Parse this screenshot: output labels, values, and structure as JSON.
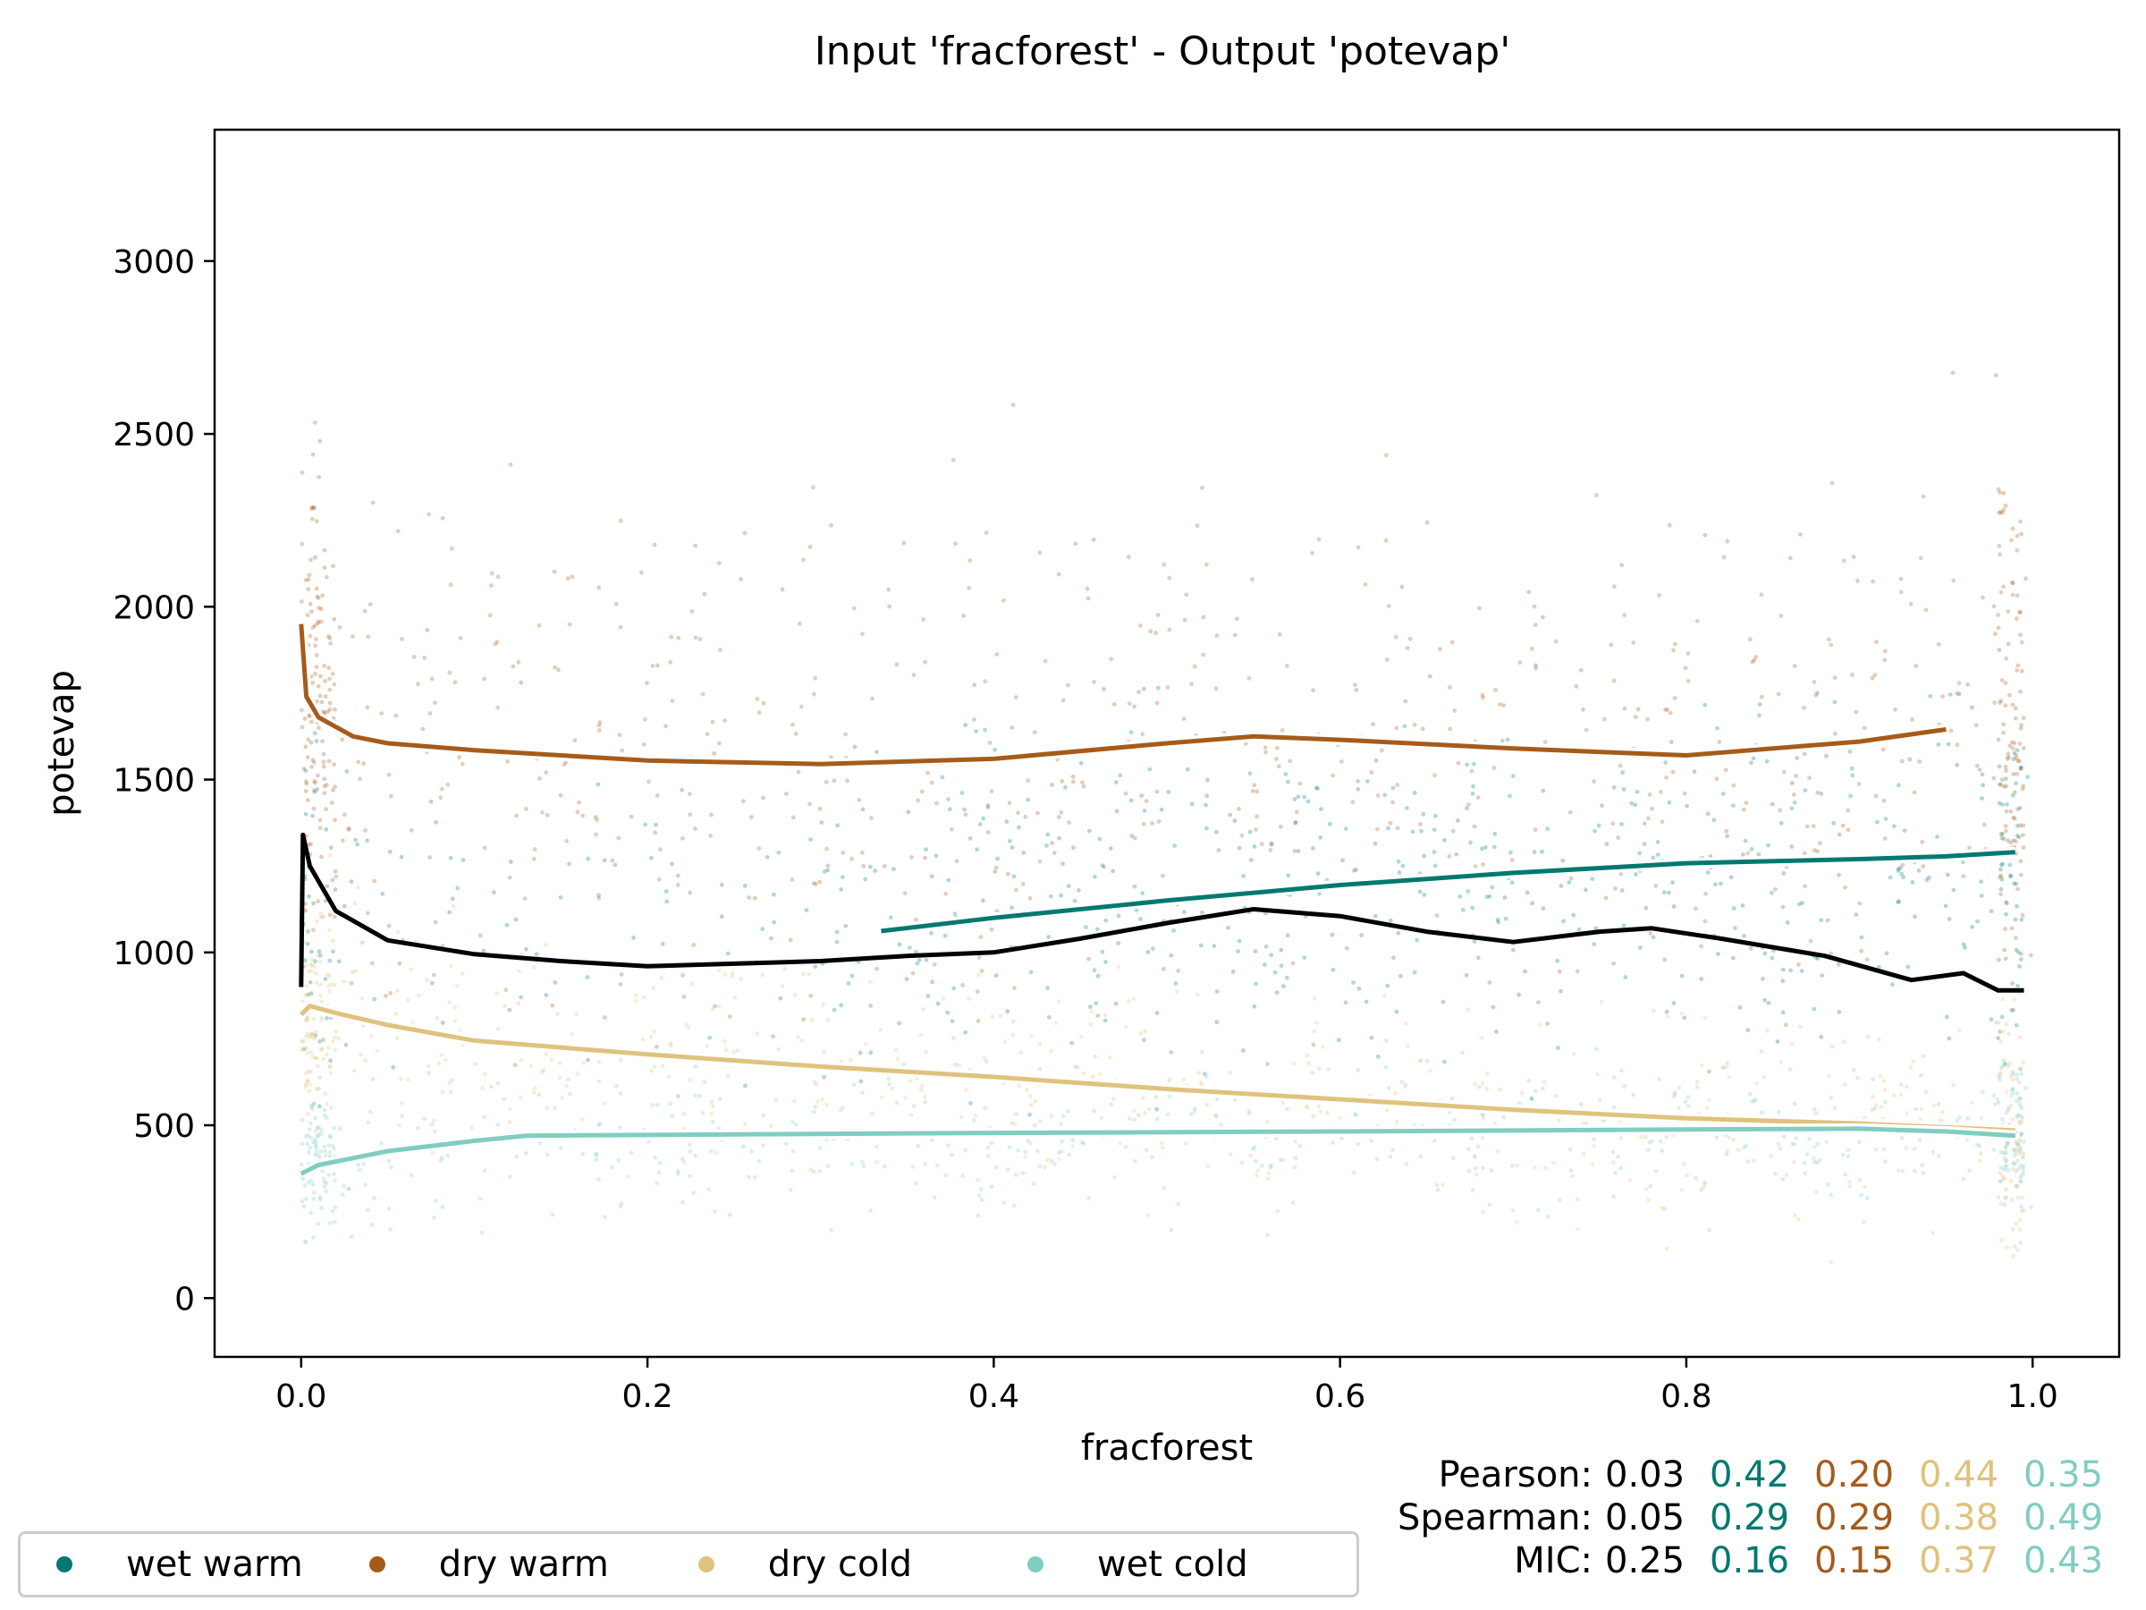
{
  "chart_data": {
    "type": "scatter",
    "title": "Input 'fracforest' - Output 'potevap'",
    "xlabel": "fracforest",
    "ylabel": "potevap",
    "xlim": [
      -0.05,
      1.05
    ],
    "ylim": [
      -170,
      3380
    ],
    "xticks": [
      0.0,
      0.2,
      0.4,
      0.6,
      0.8,
      1.0
    ],
    "xtick_labels": [
      "0.0",
      "0.2",
      "0.4",
      "0.6",
      "0.8",
      "1.0"
    ],
    "yticks": [
      0,
      500,
      1000,
      1500,
      2000,
      2500,
      3000
    ],
    "ytick_labels": [
      "0",
      "500",
      "1000",
      "1500",
      "2000",
      "2500",
      "3000"
    ],
    "grid": false,
    "legend_position": "bottom-left, below plot",
    "series": [
      {
        "name": "wet warm",
        "color": "#01796f",
        "trend": [
          [
            0.335,
            1062
          ],
          [
            0.4,
            1100
          ],
          [
            0.5,
            1150
          ],
          [
            0.6,
            1195
          ],
          [
            0.7,
            1230
          ],
          [
            0.8,
            1258
          ],
          [
            0.9,
            1270
          ],
          [
            0.95,
            1278
          ],
          [
            0.99,
            1290
          ]
        ]
      },
      {
        "name": "dry warm",
        "color": "#a65b1a",
        "trend": [
          [
            0.0,
            1950
          ],
          [
            0.003,
            1740
          ],
          [
            0.01,
            1680
          ],
          [
            0.03,
            1625
          ],
          [
            0.05,
            1605
          ],
          [
            0.1,
            1585
          ],
          [
            0.2,
            1555
          ],
          [
            0.3,
            1545
          ],
          [
            0.4,
            1560
          ],
          [
            0.5,
            1605
          ],
          [
            0.55,
            1625
          ],
          [
            0.6,
            1615
          ],
          [
            0.7,
            1590
          ],
          [
            0.8,
            1570
          ],
          [
            0.9,
            1610
          ],
          [
            0.95,
            1645
          ]
        ]
      },
      {
        "name": "dry cold",
        "color": "#dfc27d",
        "trend": [
          [
            0.0,
            820
          ],
          [
            0.005,
            845
          ],
          [
            0.02,
            825
          ],
          [
            0.05,
            790
          ],
          [
            0.1,
            745
          ],
          [
            0.2,
            705
          ],
          [
            0.3,
            670
          ],
          [
            0.4,
            640
          ],
          [
            0.5,
            605
          ],
          [
            0.6,
            575
          ],
          [
            0.7,
            545
          ],
          [
            0.8,
            520
          ],
          [
            0.9,
            505
          ],
          [
            0.99,
            485
          ]
        ]
      },
      {
        "name": "wet cold",
        "color": "#80cdc1",
        "trend": [
          [
            0.0,
            360
          ],
          [
            0.01,
            385
          ],
          [
            0.05,
            425
          ],
          [
            0.1,
            455
          ],
          [
            0.13,
            470
          ],
          [
            0.2,
            472
          ],
          [
            0.4,
            478
          ],
          [
            0.6,
            482
          ],
          [
            0.8,
            488
          ],
          [
            0.9,
            490
          ],
          [
            0.95,
            482
          ],
          [
            0.99,
            470
          ]
        ]
      }
    ],
    "overall_trend": [
      [
        0.0,
        900
      ],
      [
        0.001,
        1340
      ],
      [
        0.005,
        1250
      ],
      [
        0.02,
        1120
      ],
      [
        0.05,
        1035
      ],
      [
        0.1,
        995
      ],
      [
        0.15,
        975
      ],
      [
        0.2,
        960
      ],
      [
        0.3,
        975
      ],
      [
        0.35,
        990
      ],
      [
        0.4,
        1000
      ],
      [
        0.45,
        1040
      ],
      [
        0.5,
        1085
      ],
      [
        0.55,
        1125
      ],
      [
        0.6,
        1105
      ],
      [
        0.65,
        1060
      ],
      [
        0.7,
        1030
      ],
      [
        0.75,
        1060
      ],
      [
        0.78,
        1070
      ],
      [
        0.82,
        1040
      ],
      [
        0.88,
        990
      ],
      [
        0.93,
        920
      ],
      [
        0.96,
        940
      ],
      [
        0.98,
        890
      ],
      [
        0.995,
        890
      ]
    ],
    "overall_color": "#000000",
    "stats": {
      "rows": [
        {
          "label": "Pearson:",
          "values": [
            "0.03",
            "0.42",
            "0.20",
            "0.44",
            "0.35"
          ]
        },
        {
          "label": "Spearman:",
          "values": [
            "0.05",
            "0.29",
            "0.29",
            "0.38",
            "0.49"
          ]
        },
        {
          "label": "MIC:",
          "values": [
            "0.25",
            "0.16",
            "0.15",
            "0.37",
            "0.43"
          ]
        }
      ],
      "colors": [
        "#000000",
        "#01796f",
        "#a65b1a",
        "#dfc27d",
        "#80cdc1"
      ]
    }
  }
}
